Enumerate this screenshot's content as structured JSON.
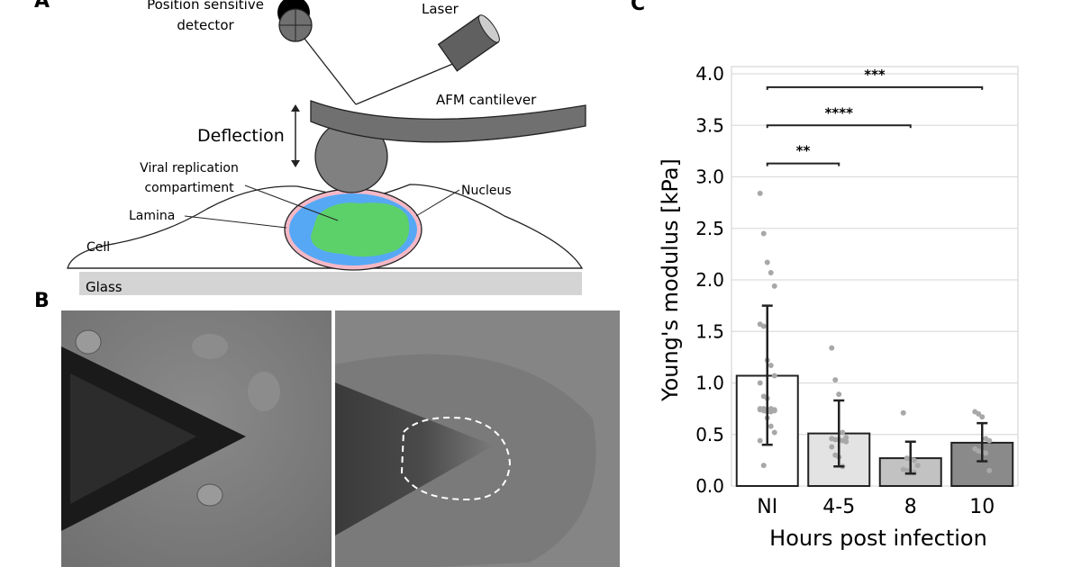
{
  "panels": {
    "a": {
      "label": "A",
      "labels": {
        "detector": [
          "Position sensitive",
          "detector"
        ],
        "laser": "Laser",
        "cantilever": "AFM cantilever",
        "deflection": "Deflection",
        "vrc": [
          "Viral replication",
          "compartiment"
        ],
        "nucleus": "Nucleus",
        "lamina": "Lamina",
        "cell": "Cell",
        "glass": "Glass"
      },
      "colors": {
        "vrc": "#5cd16a",
        "chromatin": "#56a8f5",
        "lamina": "#f4b8c6",
        "probe": "#808080",
        "glass": "#d4d4d4"
      }
    },
    "b": {
      "label": "B"
    },
    "c": {
      "label": "C"
    }
  },
  "chart_data": {
    "type": "bar",
    "categories": [
      "NI",
      "4-5",
      "8",
      "10"
    ],
    "values": [
      1.07,
      0.51,
      0.27,
      0.42
    ],
    "error_low": [
      0.4,
      0.19,
      0.12,
      0.24
    ],
    "error_high": [
      1.75,
      0.83,
      0.43,
      0.61
    ],
    "points": [
      [
        2.84,
        2.45,
        2.17,
        2.07,
        1.94,
        1.57,
        1.55,
        1.22,
        1.17,
        1.07,
        1.0,
        0.87,
        0.85,
        0.75,
        0.74,
        0.74,
        0.73,
        0.72,
        0.72,
        0.73,
        0.75,
        0.75,
        0.66,
        0.58,
        0.52,
        0.44,
        0.2
      ],
      [
        1.34,
        1.03,
        0.89,
        0.52,
        0.47,
        0.46,
        0.45,
        0.45,
        0.44,
        0.43,
        0.38,
        0.3,
        0.28,
        0.19
      ],
      [
        0.71,
        0.27,
        0.26,
        0.25,
        0.2,
        0.16,
        0.15,
        0.14,
        0.13
      ],
      [
        0.72,
        0.7,
        0.67,
        0.46,
        0.44,
        0.36,
        0.34,
        0.33,
        0.32,
        0.15
      ]
    ],
    "bar_colors": [
      "#ffffff",
      "#e3e3e3",
      "#c2c2c2",
      "#8a8a8a"
    ],
    "significance": [
      {
        "from": "NI",
        "to": "4-5",
        "label": "**",
        "y": 3.13
      },
      {
        "from": "NI",
        "to": "8",
        "label": "****",
        "y": 3.5
      },
      {
        "from": "NI",
        "to": "10",
        "label": "***",
        "y": 3.87
      }
    ],
    "xlabel": "Hours post infection",
    "ylabel": "Young's modulus [kPa]",
    "ylim": [
      0,
      4.0
    ],
    "yticks": [
      "0.0",
      "0.5",
      "1.0",
      "1.5",
      "2.0",
      "2.5",
      "3.0",
      "3.5",
      "4.0"
    ],
    "grid": true
  }
}
